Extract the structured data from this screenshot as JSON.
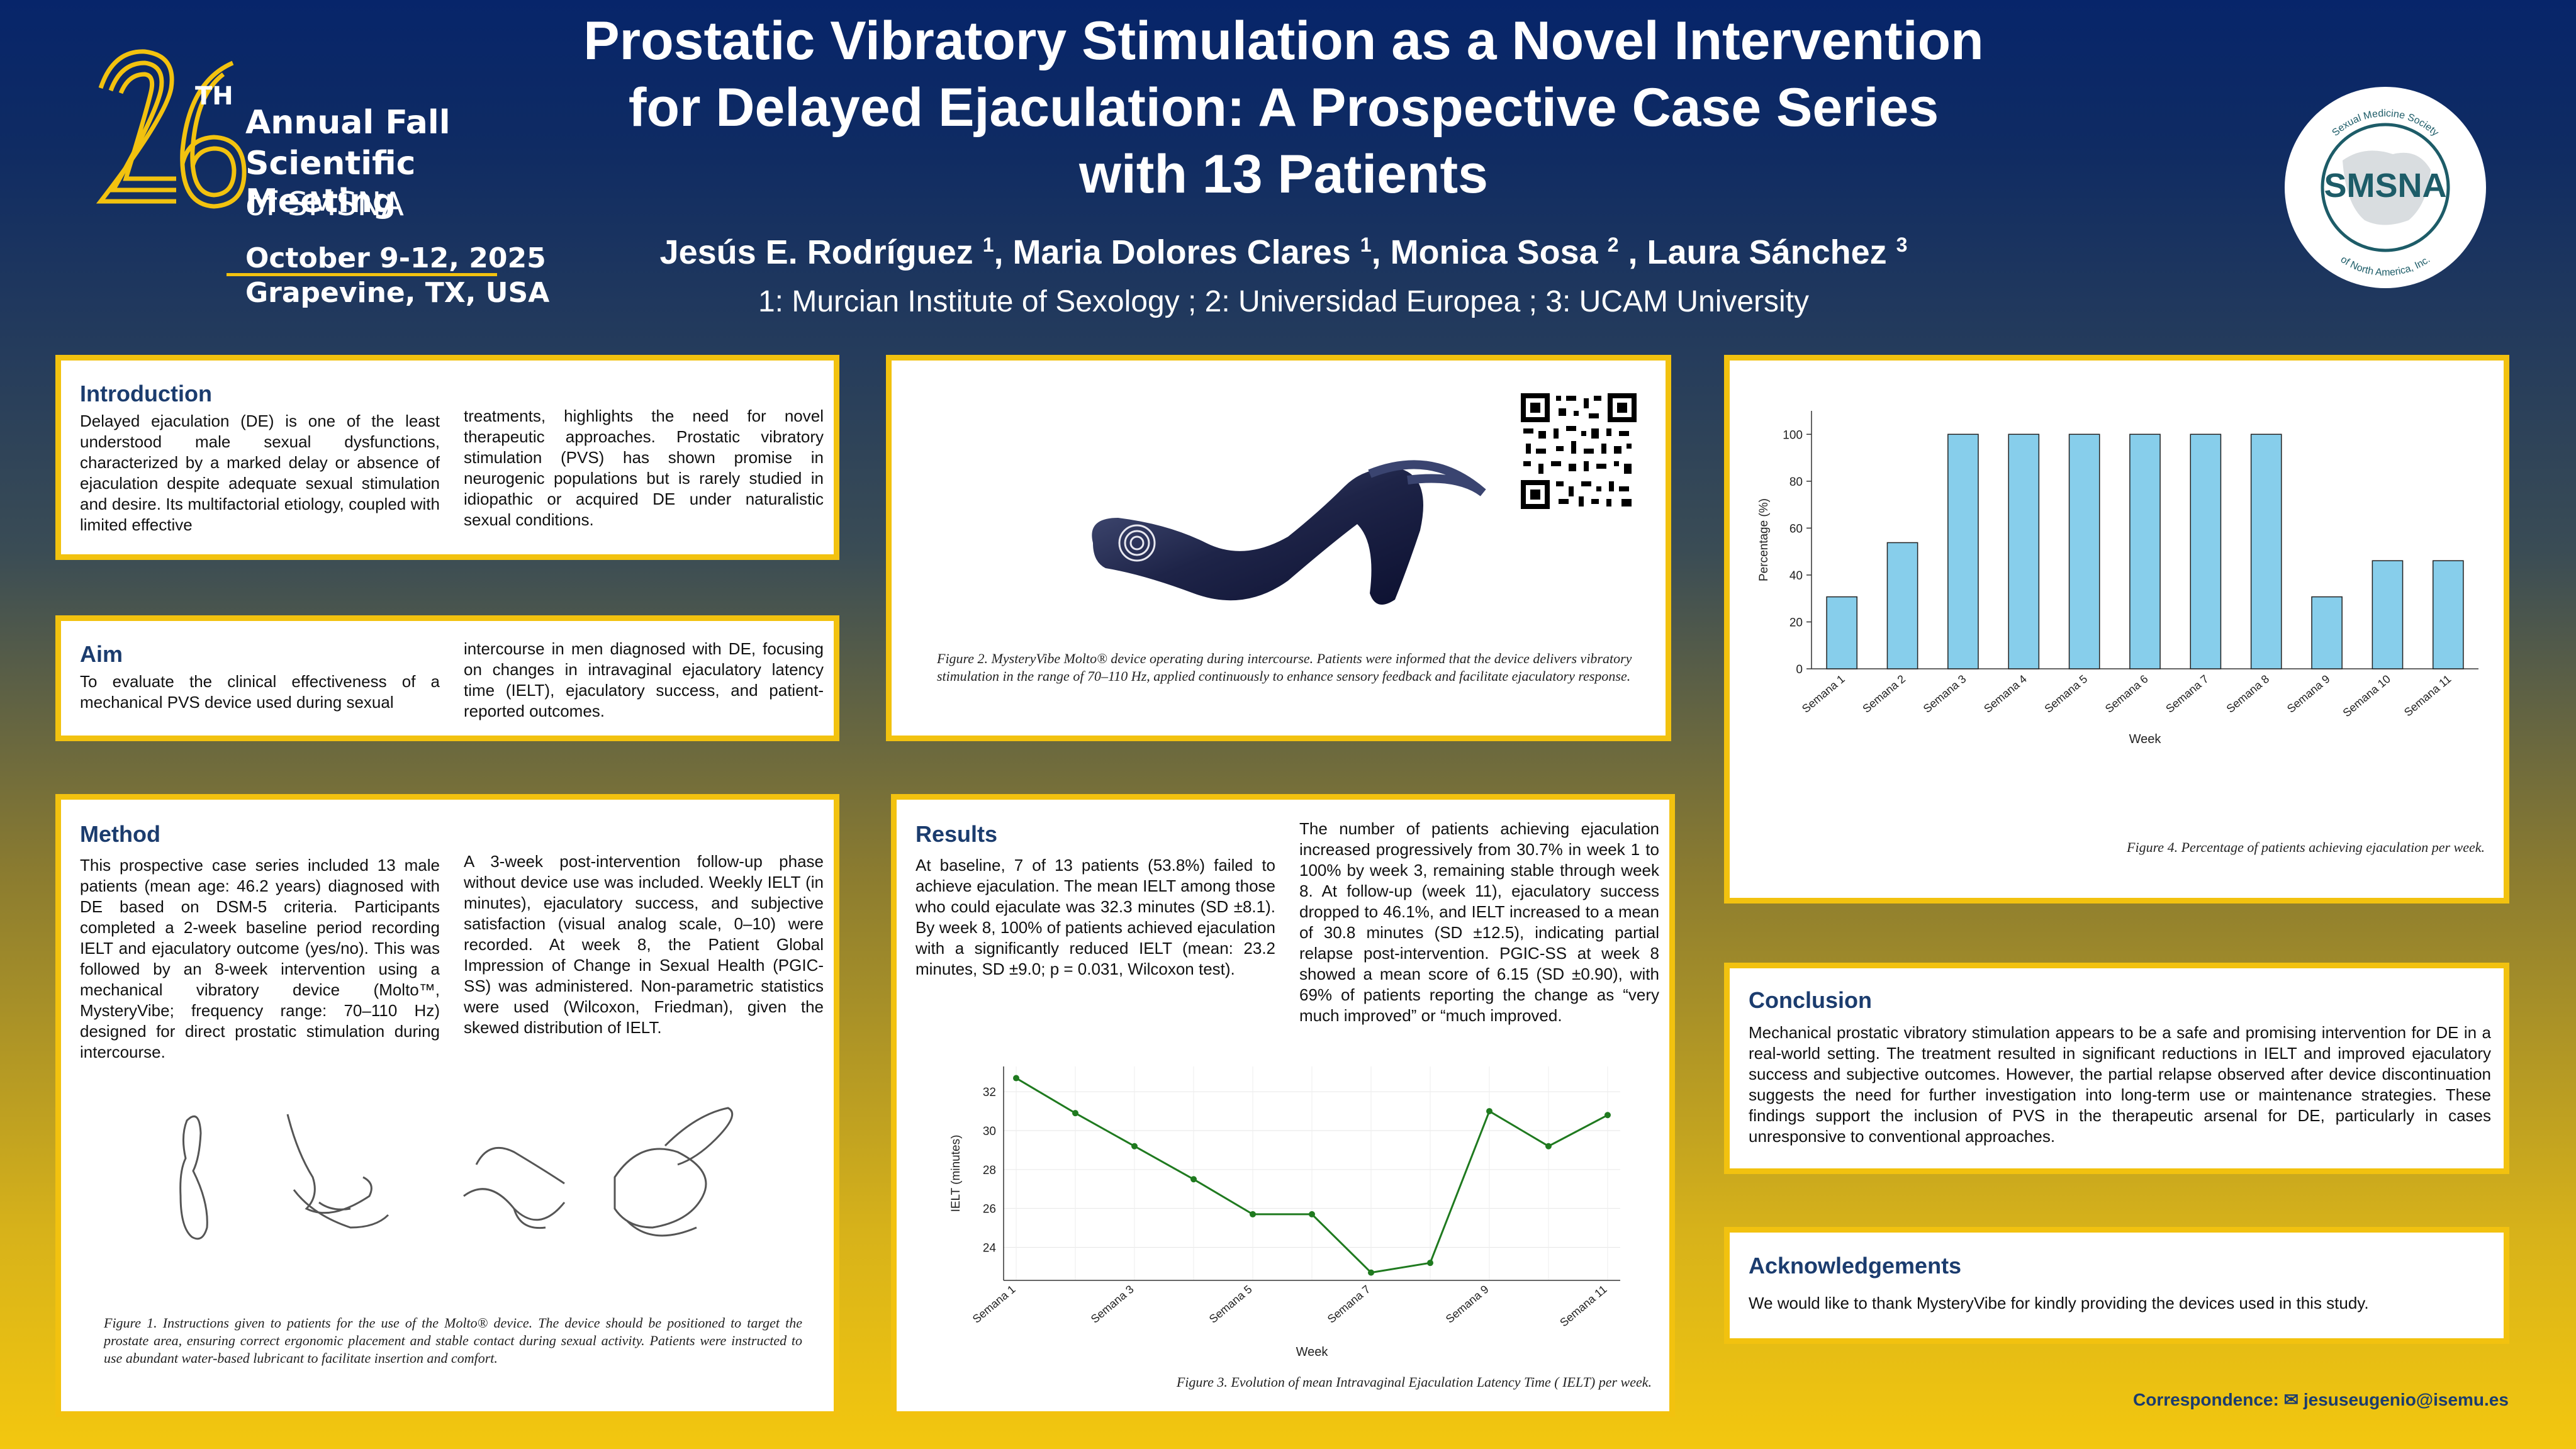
{
  "header": {
    "title_lines": [
      "Prostatic Vibratory Stimulation as a Novel Intervention",
      "for Delayed Ejaculation: A Prospective Case Series",
      "with 13 Patients"
    ],
    "authors": [
      {
        "name": "Jesús E. Rodríguez",
        "sup": "1"
      },
      {
        "name": "Maria Dolores Clares",
        "sup": "1"
      },
      {
        "name": "Monica Sosa",
        "sup": "2"
      },
      {
        "name": "Laura Sánchez",
        "sup": "3"
      }
    ],
    "affiliations": "1: Murcian Institute of Sexology ; 2: Universidad Europea ; 3: UCAM University"
  },
  "meeting": {
    "number": "26",
    "suffix": "TH",
    "line1": "Annual Fall",
    "line2": "Scientific Meeting",
    "line3": "of SMSNA",
    "dates": "October 9-12, 2025",
    "location": "Grapevine, TX, USA"
  },
  "logo": {
    "acronym": "SMSNA",
    "ring_top": "Sexual Medicine Society",
    "ring_bottom": "of North America, Inc."
  },
  "introduction": {
    "heading": "Introduction",
    "col1": "Delayed ejaculation (DE) is one of the least understood male sexual dysfunctions, characterized by a marked delay or absence of ejaculation despite adequate sexual stimulation and desire. Its multifactorial etiology, coupled with limited effective",
    "col2": "treatments, highlights the need for novel therapeutic approaches. Prostatic vibratory stimulation (PVS) has shown promise in neurogenic populations but is rarely studied in idiopathic or acquired DE under naturalistic sexual conditions."
  },
  "aim": {
    "heading": "Aim",
    "col1": "To evaluate the clinical effectiveness of a mechanical PVS device used during sexual",
    "col2": "intercourse in men diagnosed with DE, focusing on changes in intravaginal ejaculatory latency time (IELT), ejaculatory success, and patient-reported outcomes."
  },
  "method": {
    "heading": "Method",
    "col1": "This prospective case series included 13 male patients (mean age: 46.2 years) diagnosed with DE based on DSM-5 criteria. Participants completed a 2-week baseline period recording IELT and ejaculatory outcome (yes/no). This was followed by an 8-week intervention using a mechanical vibratory device (Molto™, MysteryVibe; frequency range: 70–110 Hz) designed for direct prostatic stimulation during intercourse.",
    "col2": "A 3-week post-intervention follow-up phase without device use was included. Weekly IELT (in minutes), ejaculatory success, and subjective satisfaction (visual analog scale, 0–10) were recorded. At week 8, the Patient Global Impression of Change in Sexual Health (PGIC-SS) was administered. Non-parametric statistics were used (Wilcoxon, Friedman), given the skewed distribution of IELT.",
    "caption": "Figure 1.  Instructions given to patients for the use of the Molto® device. The device should be positioned to target the prostate area, ensuring correct ergonomic placement and stable contact during sexual activity. Patients were instructed to use abundant water-based lubricant to facilitate insertion and comfort."
  },
  "device_figure": {
    "caption": "Figure 2. MysteryVibe Molto® device operating during intercourse. Patients were informed that the device delivers vibratory stimulation in the range of 70–110 Hz, applied continuously to enhance sensory feedback and facilitate ejaculatory response."
  },
  "results": {
    "heading": "Results",
    "col1": "At baseline, 7 of 13 patients (53.8%) failed to achieve ejaculation. The mean IELT among those who could ejaculate was 32.3 minutes (SD ±8.1). By week 8, 100% of patients achieved ejaculation with a significantly reduced IELT (mean: 23.2 minutes, SD ±9.0; p = 0.031, Wilcoxon test).",
    "col2": "The number of patients achieving ejaculation increased progressively from 30.7% in week 1 to 100% by week 3, remaining stable through week 8. At follow-up (week 11), ejaculatory success dropped to 46.1%, and IELT increased to a mean of 30.8 minutes (SD ±12.5), indicating partial relapse post-intervention. PGIC-SS at week 8 showed a mean score of 6.15 (SD ±0.90), with 69% of patients reporting the change as “very much improved” or “much improved.",
    "figure3_caption": "Figure 3. Evolution of mean Intravaginal Ejaculation Latency Time ( IELT) per week."
  },
  "conclusion": {
    "heading": "Conclusion",
    "text": "Mechanical prostatic vibratory stimulation appears to be a safe and promising intervention for DE in a real-world setting. The treatment resulted in significant reductions in IELT and improved ejaculatory success and subjective outcomes. However, the partial relapse observed after device discontinuation suggests the need for further investigation into long-term use or maintenance strategies. These findings support the inclusion of PVS in the therapeutic arsenal for DE, particularly in cases unresponsive to conventional approaches."
  },
  "acknowledgements": {
    "heading": "Acknowledgements",
    "text": "We would like to thank MysteryVibe for kindly providing the devices used in this study."
  },
  "figure4": {
    "caption": "Figure 4. Percentage of patients achieving ejaculation per week."
  },
  "correspondence": {
    "label": "Correspondence:",
    "email": "jesuseugenio@isemu.es"
  },
  "chart_data": [
    {
      "type": "line",
      "id": "ielt",
      "xlabel": "Week",
      "ylabel": "IELT (minutes)",
      "x": [
        "Semana 1",
        "Semana 2",
        "Semana 3",
        "Semana 4",
        "Semana 5",
        "Semana 6",
        "Semana 7",
        "Semana 8",
        "Semana 9",
        "Semana 10",
        "Semana 11"
      ],
      "x_tick_labels": [
        "Semana 1",
        "Semana 3",
        "Semana 5",
        "Semana 7",
        "Semana 9",
        "Semana 11"
      ],
      "values": [
        32.7,
        30.9,
        29.2,
        27.5,
        25.7,
        25.7,
        22.7,
        23.2,
        31.0,
        29.2,
        30.8
      ],
      "ylim": [
        22.3,
        33.3
      ],
      "yticks": [
        24,
        26,
        28,
        30,
        32
      ],
      "color": "#1f7a1f",
      "grid": true
    },
    {
      "type": "bar",
      "id": "success",
      "xlabel": "Week",
      "ylabel": "Percentage (%)",
      "categories": [
        "Semana 1",
        "Semana 2",
        "Semana 3",
        "Semana 4",
        "Semana 5",
        "Semana 6",
        "Semana 7",
        "Semana 8",
        "Semana 9",
        "Semana 10",
        "Semana 11"
      ],
      "values": [
        30.7,
        53.8,
        100,
        100,
        100,
        100,
        100,
        100,
        30.7,
        46.1,
        46.1
      ],
      "ylim": [
        0,
        110
      ],
      "yticks": [
        0,
        20,
        40,
        60,
        80,
        100
      ],
      "color": "#87ceeb",
      "grid": false
    }
  ]
}
